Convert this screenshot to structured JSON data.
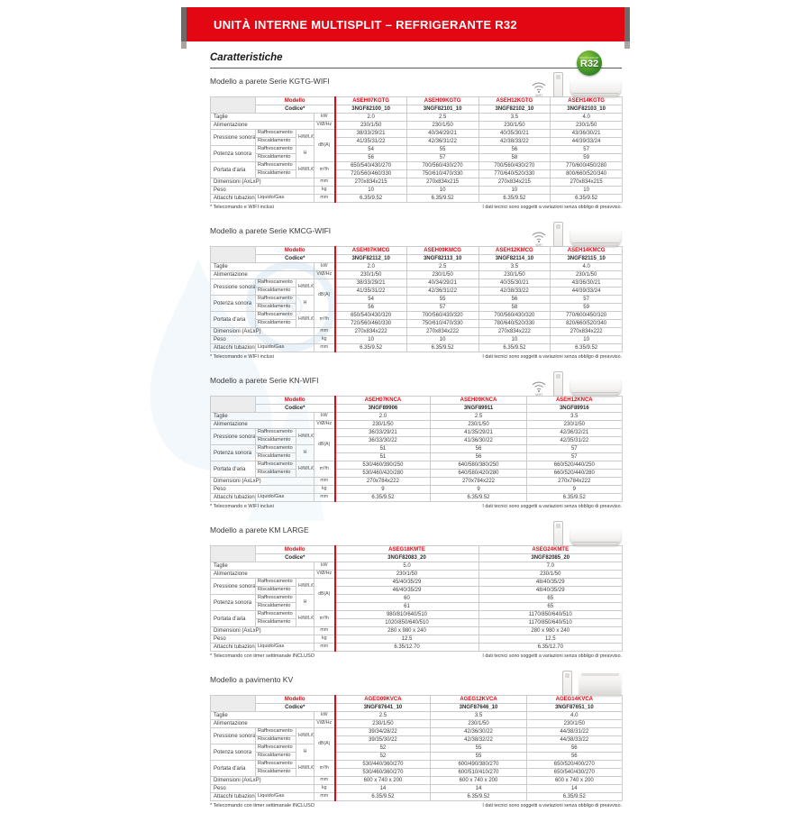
{
  "banner": {
    "title": "UNITÀ INTERNE MULTISPLIT – REFRIGERANTE R32"
  },
  "page": {
    "heading": "Caratteristiche",
    "badge": {
      "label": "R32",
      "sublabel": "REFRIGERANT",
      "color": "#3aaa35"
    },
    "accent_red": "#e30613"
  },
  "labels": {
    "modello": "Modello",
    "codice": "Codice*",
    "rows": {
      "taglie": "Taglie",
      "alimentazione": "Alimentazione",
      "pressione": "Pressione sonora",
      "potenza": "Potenza sonora",
      "portata": "Portata d'aria",
      "raffrescamento": "Raffrescamento",
      "riscaldamento": "Riscaldamento",
      "dimensioni": "Dimensioni (AxLxP)",
      "peso": "Peso",
      "attacchi": "Attacchi tubazioni",
      "liquido": "Liquido/Gas",
      "hmlq": "H/M/L/Q",
      "h": "H"
    },
    "units": {
      "kw": "kW",
      "v": "V/Ø/Hz",
      "db": "dB(A)",
      "m3h": "m³/h",
      "mm": "mm",
      "kg": "kg"
    },
    "wifi": "WIFI"
  },
  "sections": [
    {
      "title": "Modello a parete Serie KGTG-WIFI",
      "unit_type": "wall",
      "wifi": true,
      "models": [
        "ASEH07KGTG",
        "ASEH09KGTG",
        "ASEH12KGTG",
        "ASEH14KGTG"
      ],
      "codes": [
        "3NGF82100_10",
        "3NGF82101_10",
        "3NGF82102_10",
        "3NGF82103_10"
      ],
      "taglie": [
        "2.0",
        "2.5",
        "3.5",
        "4.0"
      ],
      "alimentazione": [
        "230/1/50",
        "230/1/50",
        "230/1/50",
        "230/1/50"
      ],
      "pressione_raffrescamento": [
        "38/33/29/21",
        "40/34/29/21",
        "40/35/30/21",
        "43/36/30/21"
      ],
      "pressione_riscaldamento": [
        "41/35/31/22",
        "42/36/31/22",
        "42/38/33/22",
        "44/39/33/24"
      ],
      "potenza_raffrescamento": [
        "54",
        "55",
        "56",
        "57"
      ],
      "potenza_riscaldamento": [
        "56",
        "57",
        "58",
        "59"
      ],
      "portata_raffrescamento": [
        "650/540/430/270",
        "700/560/430/270",
        "700/560/430/270",
        "770/600/450/280"
      ],
      "portata_riscaldamento": [
        "720/560/460/330",
        "750/610/470/330",
        "770/640/520/330",
        "800/660/520/340"
      ],
      "dimensioni": [
        "270x834x215",
        "270x834x215",
        "270x834x215",
        "270x834x215"
      ],
      "peso": [
        "10",
        "10",
        "10",
        "10"
      ],
      "attacchi": [
        "6.35/9.52",
        "6.35/9.52",
        "6.35/9.52",
        "6.35/9.52"
      ],
      "note_left": "* Telecomando e WIFI inclusi",
      "note_right": "I dati tecnici sono soggetti a variazioni senza obbligo di preavviso."
    },
    {
      "title": "Modello a parete Serie KMCG-WIFI",
      "unit_type": "wall",
      "wifi": true,
      "models": [
        "ASEH07KMCG",
        "ASEH09KMCG",
        "ASEH12KMCG",
        "ASEH14KMCG"
      ],
      "codes": [
        "3NGF82112_10",
        "3NGF82113_10",
        "3NGF82114_10",
        "3NGF82115_10"
      ],
      "taglie": [
        "2.0",
        "2.5",
        "3.5",
        "4.0"
      ],
      "alimentazione": [
        "230/1/50",
        "230/1/50",
        "230/1/50",
        "230/1/50"
      ],
      "pressione_raffrescamento": [
        "38/33/29/21",
        "40/34/29/21",
        "40/35/30/21",
        "43/36/30/21"
      ],
      "pressione_riscaldamento": [
        "41/35/31/22",
        "42/36/31/22",
        "42/38/33/22",
        "44/39/33/24"
      ],
      "potenza_raffrescamento": [
        "54",
        "55",
        "56",
        "57"
      ],
      "potenza_riscaldamento": [
        "56",
        "57",
        "58",
        "59"
      ],
      "portata_raffrescamento": [
        "650/540/430/320",
        "700/560/430/320",
        "700/560/430/320",
        "770/600/450/320"
      ],
      "portata_riscaldamento": [
        "720/560/460/330",
        "750/610/470/330",
        "780/640/520/330",
        "820/660/520/340"
      ],
      "dimensioni": [
        "270x834x222",
        "270x834x222",
        "270x834x222",
        "270x834x222"
      ],
      "peso": [
        "10",
        "10",
        "10",
        "10"
      ],
      "attacchi": [
        "6.35/9.52",
        "6.35/9.52",
        "6.35/9.52",
        "6.35/9.52"
      ],
      "note_left": "* Telecomando e WIFI inclusi",
      "note_right": "I dati tecnici sono soggetti a variazioni senza obbligo di preavviso."
    },
    {
      "title": "Modello a parete Serie KN-WIFI",
      "unit_type": "wall",
      "wifi": true,
      "models": [
        "ASEH07KNCA",
        "ASEH09KNCA",
        "ASEH12KNCA"
      ],
      "codes": [
        "3NGF89906",
        "3NGF89911",
        "3NGF89916"
      ],
      "taglie": [
        "2.0",
        "2.5",
        "3.5"
      ],
      "alimentazione": [
        "230/1/50",
        "230/1/50",
        "230/1/50"
      ],
      "pressione_raffrescamento": [
        "36/33/29/21",
        "41/35/29/21",
        "42/36/32/21"
      ],
      "pressione_riscaldamento": [
        "36/33/30/22",
        "41/36/30/22",
        "42/35/31/22"
      ],
      "potenza_raffrescamento": [
        "51",
        "56",
        "57"
      ],
      "potenza_riscaldamento": [
        "51",
        "56",
        "57"
      ],
      "portata_raffrescamento": [
        "530/460/390/250",
        "640/580/380/250",
        "660/520/440/250"
      ],
      "portata_riscaldamento": [
        "530/460/420/280",
        "640/580/420/280",
        "660/520/440/280"
      ],
      "dimensioni": [
        "270x784x222",
        "270x784x222",
        "270x784x222"
      ],
      "peso": [
        "9",
        "9",
        "9"
      ],
      "attacchi": [
        "6.35/9.52",
        "6.35/9.52",
        "6.35/9.52"
      ],
      "note_left": "* Telecomando e WIFI inclusi",
      "note_right": "I dati tecnici sono soggetti a variazioni senza obbligo di preavviso."
    },
    {
      "title": "Modello a parete KM LARGE",
      "unit_type": "wall",
      "wifi": false,
      "models": [
        "ASEG18KMTE",
        "ASEG24KMTE"
      ],
      "codes": [
        "3NGF82083_20",
        "3NGF82085_20"
      ],
      "taglie": [
        "5.0",
        "7.0"
      ],
      "alimentazione": [
        "230/1/50",
        "230/1/50"
      ],
      "pressione_raffrescamento": [
        "45/40/35/29",
        "48/40/35/29"
      ],
      "pressione_riscaldamento": [
        "46/40/35/29",
        "48/40/35/29"
      ],
      "potenza_raffrescamento": [
        "60",
        "65"
      ],
      "potenza_riscaldamento": [
        "61",
        "65"
      ],
      "portata_raffrescamento": [
        "980/810/640/510",
        "1170/850/640/510"
      ],
      "portata_riscaldamento": [
        "1020/850/640/510",
        "1170/850/640/510"
      ],
      "dimensioni": [
        "280 x 980 x 240",
        "280 x 980 x 240"
      ],
      "peso": [
        "12.5",
        "12.5"
      ],
      "attacchi": [
        "6.35/12.70",
        "6.35/12.70"
      ],
      "note_left": "* Telecomando con timer settimanale INCLUSO",
      "note_right": "I dati tecnici sono soggetti a variazioni senza obbligo di preavviso."
    },
    {
      "title": "Modello a pavimento KV",
      "unit_type": "floor",
      "wifi": false,
      "models": [
        "AGEG09KVCA",
        "AGEG12KVCA",
        "AGEG14KVCA"
      ],
      "codes": [
        "3NGF87641_10",
        "3NGF87646_10",
        "3NGF87651_10"
      ],
      "taglie": [
        "2.5",
        "3.5",
        "4.0"
      ],
      "alimentazione": [
        "230/1/50",
        "230/1/50",
        "230/1/50"
      ],
      "pressione_raffrescamento": [
        "39/34/28/22",
        "42/36/30/22",
        "44/38/31/22"
      ],
      "pressione_riscaldamento": [
        "39/35/30/22",
        "42/38/32/22",
        "44/38/33/22"
      ],
      "potenza_raffrescamento": [
        "52",
        "55",
        "56"
      ],
      "potenza_riscaldamento": [
        "52",
        "55",
        "56"
      ],
      "portata_raffrescamento": [
        "530/440/360/270",
        "600/490/380/270",
        "650/520/400/270"
      ],
      "portata_riscaldamento": [
        "530/460/360/270",
        "600/510/410/270",
        "650/540/430/270"
      ],
      "dimensioni": [
        "600 x 740 x 200",
        "600 x 740 x 200",
        "600 x 740 x 200"
      ],
      "peso": [
        "14",
        "14",
        "14"
      ],
      "attacchi": [
        "6.35/9.52",
        "6.35/9.52",
        "6.35/9.52"
      ],
      "note_left": "* Telecomando con timer settimanale INCLUSO",
      "note_right": "I dati tecnici sono soggetti a variazioni senza obbligo di preavviso."
    }
  ]
}
